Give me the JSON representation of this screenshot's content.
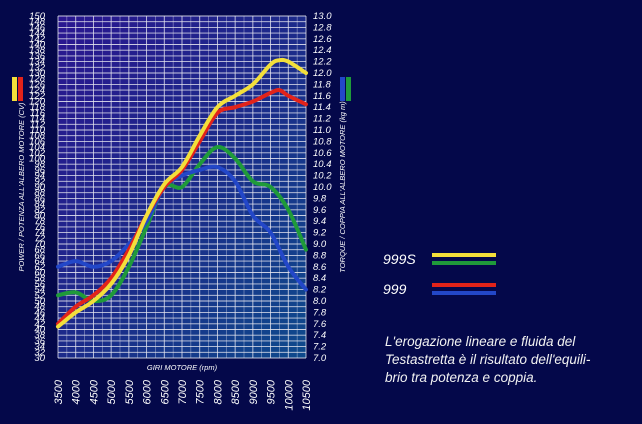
{
  "chart_data": {
    "type": "line",
    "xlabel": "GIRI MOTORE (rpm)",
    "ylabel_left": "POWER / POTENZA ALL'ALBERO MOTORE (CV)",
    "ylabel_right": "TORQUE / COPPIA ALL'ALBERO MOTORE (kg m)",
    "xlim": [
      3500,
      10500
    ],
    "ylim_left": [
      30,
      150
    ],
    "ylim_right": [
      7.0,
      13.0
    ],
    "x_ticks": [
      "3500",
      "4000",
      "4500",
      "5000",
      "5500",
      "6000",
      "6500",
      "7000",
      "7500",
      "8000",
      "8500",
      "9000",
      "9500",
      "10000",
      "10500"
    ],
    "y_ticks_left": [
      "30",
      "32",
      "34",
      "36",
      "38",
      "40",
      "42",
      "44",
      "46",
      "48",
      "50",
      "52",
      "54",
      "56",
      "58",
      "60",
      "62",
      "64",
      "66",
      "68",
      "70",
      "72",
      "74",
      "76",
      "78",
      "80",
      "82",
      "84",
      "86",
      "88",
      "90",
      "92",
      "94",
      "96",
      "98",
      "100",
      "102",
      "104",
      "106",
      "108",
      "110",
      "112",
      "114",
      "116",
      "118",
      "120",
      "122",
      "124",
      "126",
      "128",
      "130",
      "132",
      "134",
      "136",
      "138",
      "140",
      "142",
      "144",
      "146",
      "148",
      "150"
    ],
    "y_ticks_right": [
      "7.0",
      "7.2",
      "7.4",
      "7.6",
      "7.8",
      "8.0",
      "8.2",
      "8.4",
      "8.6",
      "8.8",
      "9.0",
      "9.2",
      "9.4",
      "9.6",
      "9.8",
      "10.0",
      "10.2",
      "10.4",
      "10.6",
      "10.8",
      "11.0",
      "11.2",
      "11.4",
      "11.6",
      "11.8",
      "12.0",
      "12.2",
      "12.4",
      "12.6",
      "12.8",
      "13.0"
    ],
    "grid": true,
    "legend": [
      {
        "name": "999S",
        "colors": [
          "#f3df3a",
          "#1f9a3a"
        ]
      },
      {
        "name": "999",
        "colors": [
          "#e2231a",
          "#2347c8"
        ]
      }
    ],
    "series": [
      {
        "model": "999S",
        "quantity": "power",
        "axis": "left",
        "color": "#f3df3a",
        "points": [
          [
            3500,
            41
          ],
          [
            4000,
            46
          ],
          [
            4500,
            50
          ],
          [
            5000,
            56
          ],
          [
            5500,
            66
          ],
          [
            6000,
            80
          ],
          [
            6500,
            91
          ],
          [
            7000,
            97
          ],
          [
            7500,
            108
          ],
          [
            8000,
            118
          ],
          [
            8500,
            122
          ],
          [
            9000,
            126
          ],
          [
            9500,
            133
          ],
          [
            9750,
            134.5
          ],
          [
            10000,
            134
          ],
          [
            10500,
            130
          ]
        ]
      },
      {
        "model": "999",
        "quantity": "power",
        "axis": "left",
        "color": "#e2231a",
        "points": [
          [
            3500,
            42
          ],
          [
            4000,
            48
          ],
          [
            4500,
            52
          ],
          [
            5000,
            58
          ],
          [
            5500,
            68
          ],
          [
            6000,
            80
          ],
          [
            6500,
            90
          ],
          [
            7000,
            96
          ],
          [
            7500,
            106
          ],
          [
            8000,
            116
          ],
          [
            8500,
            118
          ],
          [
            9000,
            120
          ],
          [
            9500,
            123
          ],
          [
            9750,
            124
          ],
          [
            10000,
            122
          ],
          [
            10500,
            119
          ]
        ]
      },
      {
        "model": "999S",
        "quantity": "torque",
        "axis": "right",
        "color": "#1f9a3a",
        "points": [
          [
            3500,
            8.1
          ],
          [
            4000,
            8.15
          ],
          [
            4500,
            8.0
          ],
          [
            5000,
            8.1
          ],
          [
            5500,
            8.6
          ],
          [
            6000,
            9.3
          ],
          [
            6500,
            10.0
          ],
          [
            7000,
            10.0
          ],
          [
            7500,
            10.4
          ],
          [
            8000,
            10.7
          ],
          [
            8500,
            10.5
          ],
          [
            9000,
            10.1
          ],
          [
            9500,
            10.0
          ],
          [
            10000,
            9.6
          ],
          [
            10500,
            8.9
          ]
        ]
      },
      {
        "model": "999",
        "quantity": "torque",
        "axis": "right",
        "color": "#2347c8",
        "points": [
          [
            3500,
            8.6
          ],
          [
            4000,
            8.7
          ],
          [
            4500,
            8.6
          ],
          [
            5000,
            8.7
          ],
          [
            5500,
            9.0
          ],
          [
            6000,
            9.4
          ],
          [
            6500,
            10.0
          ],
          [
            7000,
            10.2
          ],
          [
            7500,
            10.3
          ],
          [
            8000,
            10.35
          ],
          [
            8500,
            10.1
          ],
          [
            9000,
            9.5
          ],
          [
            9500,
            9.2
          ],
          [
            10000,
            8.6
          ],
          [
            10500,
            8.2
          ]
        ]
      }
    ]
  },
  "caption": "L'erogazione lineare e fluida del\nTestastretta è il risultato dell'equili-\nbrio tra potenza e coppia."
}
